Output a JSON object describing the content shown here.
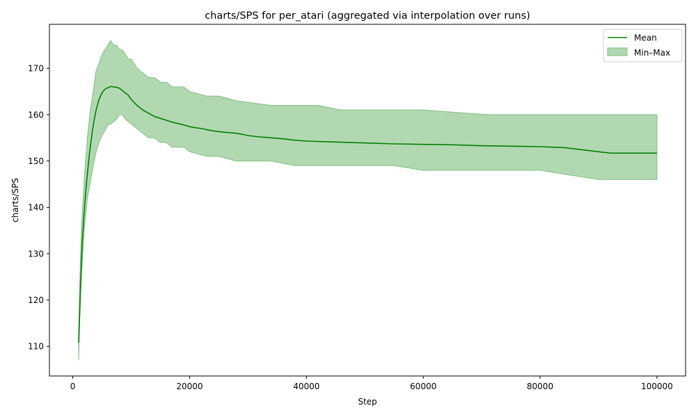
{
  "chart_data": {
    "type": "area",
    "title": "charts/SPS for per_atari (aggregated via interpolation over runs)",
    "xlabel": "Step",
    "ylabel": "charts/SPS",
    "xlim": [
      -4000,
      104900
    ],
    "ylim": [
      103.6,
      179.5
    ],
    "xticks": [
      0,
      20000,
      40000,
      60000,
      80000,
      100000
    ],
    "yticks": [
      110,
      120,
      130,
      140,
      150,
      160,
      170
    ],
    "grid": false,
    "legend": {
      "position": "top-right",
      "entries": [
        "Mean",
        "Min–Max"
      ]
    },
    "colors": {
      "mean": "#008000",
      "band_fill": "#b2d8b2",
      "band_edge": "#7fbf7f"
    },
    "series": [
      {
        "name": "Mean",
        "x": [
          1000,
          1300,
          1600,
          2000,
          2400,
          2800,
          3200,
          3600,
          4000,
          4500,
          5000,
          5500,
          6000,
          6500,
          7000,
          7500,
          8000,
          8500,
          9000,
          9500,
          10000,
          11000,
          12000,
          13000,
          14000,
          15000,
          16000,
          17000,
          18000,
          19000,
          20000,
          22000,
          24000,
          26000,
          28000,
          30000,
          32000,
          34000,
          36000,
          38000,
          40000,
          45000,
          50000,
          55000,
          60000,
          65000,
          70000,
          75000,
          80000,
          82000,
          84000,
          86000,
          88000,
          90000,
          92000,
          94000,
          96000,
          98000,
          100000
        ],
        "y": [
          110.8,
          122,
          132,
          140,
          146,
          151,
          155,
          158.5,
          161,
          163.3,
          164.7,
          165.5,
          165.8,
          166.1,
          166.0,
          165.9,
          165.7,
          165.2,
          164.7,
          164.2,
          163.3,
          162.0,
          161.0,
          160.3,
          159.6,
          159.2,
          158.8,
          158.4,
          158.1,
          157.8,
          157.4,
          157.0,
          156.5,
          156.2,
          156.0,
          155.5,
          155.2,
          155.0,
          154.8,
          154.5,
          154.3,
          154.1,
          153.9,
          153.7,
          153.6,
          153.5,
          153.3,
          153.2,
          153.1,
          153.0,
          152.9,
          152.6,
          152.3,
          152.0,
          151.7,
          151.7,
          151.7,
          151.7,
          151.7
        ]
      },
      {
        "name": "Min–Max",
        "x": [
          1000,
          1200,
          1500,
          2000,
          2500,
          3000,
          3500,
          4000,
          4500,
          5000,
          5500,
          6000,
          6500,
          7000,
          7500,
          8000,
          8500,
          9000,
          9500,
          10000,
          11000,
          12000,
          13000,
          14000,
          15000,
          16000,
          17000,
          18000,
          19000,
          20000,
          23000,
          25000,
          28000,
          34000,
          38000,
          42000,
          46000,
          50000,
          55000,
          60000,
          71000,
          75000,
          80000,
          85000,
          90000,
          95000,
          100000
        ],
        "lower": [
          107,
          116,
          126,
          136,
          142,
          145.5,
          149,
          152,
          154,
          155.5,
          156.5,
          157.8,
          158,
          158.5,
          159,
          160,
          160,
          159,
          158.5,
          158,
          157,
          156,
          155,
          155,
          154,
          154,
          153,
          153,
          153,
          152,
          151,
          151,
          150,
          150,
          149,
          149,
          149,
          149,
          149,
          148,
          148,
          148,
          148,
          147,
          146,
          146,
          146
        ],
        "upper": [
          112,
          124,
          136,
          147,
          155,
          161,
          165,
          169.5,
          171,
          173,
          174,
          175,
          176,
          175,
          175,
          174,
          174,
          173,
          172,
          172,
          170,
          169,
          168,
          168,
          167,
          167,
          166,
          166,
          166,
          165,
          164,
          164,
          163,
          162,
          162,
          162,
          161,
          161,
          161,
          161,
          160,
          160,
          160,
          160,
          160,
          160,
          160
        ]
      }
    ]
  }
}
